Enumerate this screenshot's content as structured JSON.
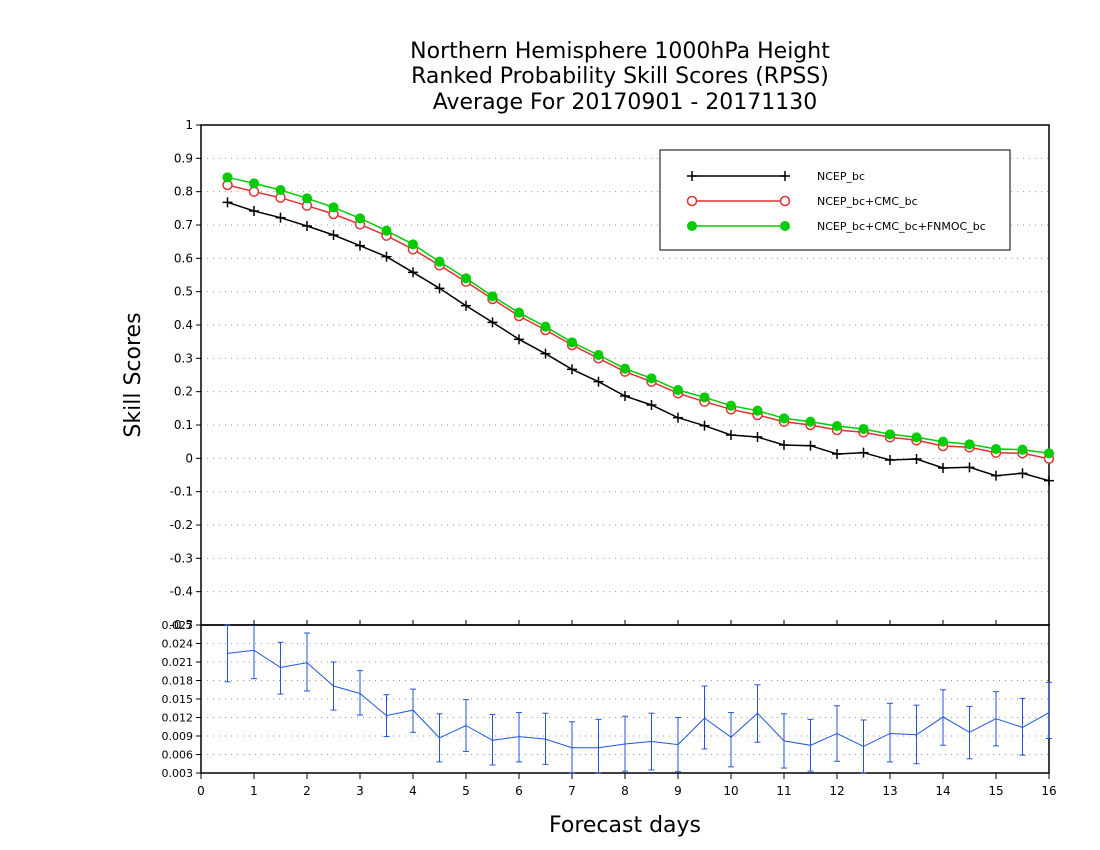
{
  "chart_data": [
    {
      "type": "line",
      "title_lines": [
        "Northern Hemisphere 1000hPa Height",
        "Ranked Probability Skill Scores (RPSS)",
        "Average For 20170901 - 20171130"
      ],
      "ylabel": "Skill Scores",
      "xlabel": "Forecast days",
      "xlim": [
        0,
        16
      ],
      "ylim": [
        -0.5,
        1
      ],
      "y_tick_labels": [
        "1",
        "0.9",
        "0.8",
        "0.7",
        "0.6",
        "0.5",
        "0.4",
        "0.3",
        "0.2",
        "0.1",
        "0",
        "-0.1",
        "-0.2",
        "-0.3",
        "-0.4",
        "-0.5"
      ],
      "x_tick_labels": [
        "0",
        "1",
        "2",
        "3",
        "4",
        "5",
        "6",
        "7",
        "8",
        "9",
        "10",
        "11",
        "12",
        "13",
        "14",
        "15",
        "16"
      ],
      "grid": true,
      "legend_position": "top-right",
      "x": [
        0.5,
        1,
        1.5,
        2,
        2.5,
        3,
        3.5,
        4,
        4.5,
        5,
        5.5,
        6,
        6.5,
        7,
        7.5,
        8,
        8.5,
        9,
        9.5,
        10,
        10.5,
        11,
        11.5,
        12,
        12.5,
        13,
        13.5,
        14,
        14.5,
        15,
        15.5,
        16
      ],
      "series": [
        {
          "name": "NCEP_bc",
          "color": "#000000",
          "marker": "plus",
          "values": [
            0.768,
            0.742,
            0.722,
            0.697,
            0.67,
            0.638,
            0.605,
            0.558,
            0.51,
            0.458,
            0.408,
            0.357,
            0.314,
            0.267,
            0.23,
            0.187,
            0.16,
            0.122,
            0.098,
            0.07,
            0.064,
            0.04,
            0.038,
            0.013,
            0.017,
            -0.005,
            -0.002,
            -0.029,
            -0.027,
            -0.052,
            -0.045,
            -0.067
          ]
        },
        {
          "name": "NCEP_bc+CMC_bc",
          "color": "#e03030",
          "marker": "open-circle",
          "values": [
            0.82,
            0.8,
            0.782,
            0.758,
            0.733,
            0.702,
            0.668,
            0.627,
            0.579,
            0.53,
            0.478,
            0.427,
            0.385,
            0.34,
            0.3,
            0.26,
            0.23,
            0.195,
            0.17,
            0.147,
            0.13,
            0.11,
            0.1,
            0.085,
            0.078,
            0.063,
            0.054,
            0.037,
            0.033,
            0.017,
            0.015,
            -0.001
          ]
        },
        {
          "name": "NCEP_bc+CMC_bc+FNMOC_bc",
          "color": "#00cc00",
          "marker": "filled-circle",
          "values": [
            0.843,
            0.825,
            0.805,
            0.78,
            0.753,
            0.72,
            0.683,
            0.642,
            0.59,
            0.54,
            0.486,
            0.437,
            0.395,
            0.348,
            0.31,
            0.269,
            0.24,
            0.205,
            0.183,
            0.158,
            0.143,
            0.12,
            0.11,
            0.097,
            0.088,
            0.072,
            0.063,
            0.05,
            0.042,
            0.028,
            0.026,
            0.015
          ]
        }
      ]
    },
    {
      "type": "line",
      "xlim": [
        0,
        16
      ],
      "ylim": [
        0.003,
        0.027
      ],
      "y_tick_labels": [
        "0.027",
        "0.024",
        "0.021",
        "0.018",
        "0.015",
        "0.012",
        "0.009",
        "0.006",
        "0.003"
      ],
      "grid": true,
      "x": [
        0.5,
        1,
        1.5,
        2,
        2.5,
        3,
        3.5,
        4,
        4.5,
        5,
        5.5,
        6,
        6.5,
        7,
        7.5,
        8,
        8.5,
        9,
        9.5,
        10,
        10.5,
        11,
        11.5,
        12,
        12.5,
        13,
        13.5,
        14,
        14.5,
        15,
        15.5,
        16
      ],
      "series": [
        {
          "color": "#2255dd",
          "error_bars": true,
          "values": [
            0.0224,
            0.0229,
            0.0201,
            0.0209,
            0.0171,
            0.0159,
            0.0123,
            0.0132,
            0.0087,
            0.0107,
            0.0083,
            0.0089,
            0.0085,
            0.0071,
            0.0071,
            0.0077,
            0.0081,
            0.0076,
            0.0119,
            0.0088,
            0.0127,
            0.0082,
            0.0075,
            0.0094,
            0.0073,
            0.0094,
            0.0092,
            0.0121,
            0.0096,
            0.0118,
            0.0104,
            0.0128
          ],
          "lower": [
            0.0178,
            0.0183,
            0.0158,
            0.0163,
            0.0132,
            0.0124,
            0.0089,
            0.0096,
            0.0048,
            0.0065,
            0.0043,
            0.0048,
            0.0044,
            0.003,
            0.003,
            0.0033,
            0.0035,
            0.0032,
            0.0069,
            0.004,
            0.008,
            0.0038,
            0.0033,
            0.0049,
            0.003,
            0.0048,
            0.0045,
            0.0075,
            0.0053,
            0.0074,
            0.0059,
            0.0086
          ],
          "upper": [
            0.027,
            0.0276,
            0.0242,
            0.0257,
            0.021,
            0.0196,
            0.0157,
            0.0166,
            0.0126,
            0.0149,
            0.0125,
            0.0128,
            0.0127,
            0.0113,
            0.0117,
            0.0122,
            0.0127,
            0.012,
            0.0171,
            0.0128,
            0.0173,
            0.0126,
            0.0117,
            0.0139,
            0.0116,
            0.0143,
            0.014,
            0.0165,
            0.0138,
            0.0162,
            0.0151,
            0.0177
          ]
        }
      ]
    }
  ]
}
